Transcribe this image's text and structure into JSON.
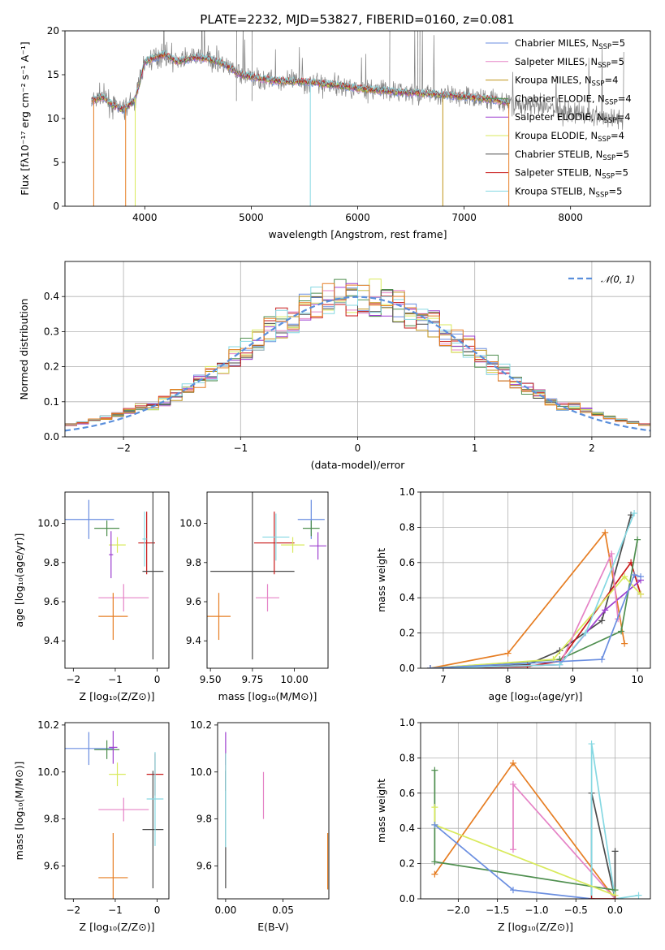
{
  "figure": {
    "title": "PLATE=2232, MJD=53827, FIBERID=0160, z=0.081"
  },
  "colors": {
    "chabrier_miles": "#6a8ee0",
    "salpeter_miles": "#e583c6",
    "kroupa_miles": "#c0941a",
    "chabrier_elodie": "#4f8f4f",
    "salpeter_elodie": "#9d3fcf",
    "kroupa_elodie": "#d9ea5c",
    "chabrier_stelib": "#4a4a4a",
    "salpeter_stelib": "#c81a1a",
    "kroupa_stelib": "#86d8e2",
    "orange": "#e67d22",
    "data_gray": "#808080",
    "normal": "#5a8fdc"
  },
  "chart_data": [
    {
      "id": "spectrum",
      "type": "line",
      "xlabel": "wavelength [Angstrom, rest frame]",
      "ylabel": "Flux [fλ10⁻¹⁷ erg cm⁻² s⁻¹ A⁻¹]",
      "xlim": [
        3250,
        8750
      ],
      "ylim": [
        0,
        20
      ],
      "xticks": [
        4000,
        5000,
        6000,
        7000,
        8000
      ],
      "yticks": [
        0,
        5,
        10,
        15,
        20
      ],
      "legend": "top-right",
      "legend_entries": [
        {
          "label": "Chabrier MILES, N",
          "sub": "SSP",
          "suffix": "=5",
          "color": "#6a8ee0"
        },
        {
          "label": "Salpeter MILES, N",
          "sub": "SSP",
          "suffix": "=5",
          "color": "#e583c6"
        },
        {
          "label": "Kroupa MILES, N",
          "sub": "SSP",
          "suffix": "=4",
          "color": "#c0941a"
        },
        {
          "label": "Chabrier ELODIE, N",
          "sub": "SSP",
          "suffix": "=4",
          "color": "#4f8f4f"
        },
        {
          "label": "Salpeter ELODIE, N",
          "sub": "SSP",
          "suffix": "=4",
          "color": "#9d3fcf"
        },
        {
          "label": "Kroupa ELODIE, N",
          "sub": "SSP",
          "suffix": "=4",
          "color": "#d9ea5c"
        },
        {
          "label": "Chabrier STELIB, N",
          "sub": "SSP",
          "suffix": "=5",
          "color": "#4a4a4a"
        },
        {
          "label": "Salpeter STELIB, N",
          "sub": "SSP",
          "suffix": "=5",
          "color": "#c81a1a"
        },
        {
          "label": "Kroupa STELIB, N",
          "sub": "SSP",
          "suffix": "=5",
          "color": "#86d8e2"
        }
      ],
      "continuum": {
        "x": [
          3500,
          3600,
          3700,
          3800,
          3900,
          3950,
          4000,
          4100,
          4200,
          4300,
          4500,
          4700,
          4900,
          5200,
          5500,
          5800,
          6100,
          6400,
          6700,
          7000,
          7300,
          7500,
          7800,
          8100,
          8400
        ],
        "y": [
          12,
          12.5,
          11.5,
          11,
          12,
          14,
          16.5,
          17,
          17.3,
          16.5,
          17,
          16.5,
          15,
          14.3,
          14.2,
          13.8,
          13.3,
          13,
          12.8,
          12.5,
          12.1,
          11.6,
          11.2,
          10.6,
          10
        ]
      },
      "data_x_range": [
        3500,
        8500
      ],
      "model_x_range": [
        3500,
        7420
      ],
      "model_dips": [
        {
          "x": 3520,
          "color": "#e67d22"
        },
        {
          "x": 3820,
          "color": "#e67d22"
        },
        {
          "x": 3910,
          "color": "#d9ea5c"
        },
        {
          "x": 5555,
          "color": "#86d8e2"
        },
        {
          "x": 6800,
          "color": "#c0941a"
        },
        {
          "x": 7420,
          "color": "#e67d22"
        }
      ]
    },
    {
      "id": "residuals",
      "type": "line",
      "xlabel": "(data-model)/error",
      "ylabel": "Normed distribution",
      "xlim": [
        -2.5,
        2.5
      ],
      "ylim": [
        0,
        0.5
      ],
      "xticks": [
        -2,
        -1,
        0,
        1,
        2
      ],
      "yticks": [
        0.0,
        0.1,
        0.2,
        0.3,
        0.4
      ],
      "legend": "top-right",
      "legend_label": "𝒩(0, 1)",
      "bin_width": 0.1
    },
    {
      "id": "age_vs_Z",
      "type": "scatter",
      "xlabel": "Z [log₁₀(Z/Z⊙)]",
      "ylabel": "age  [log₁₀(age/yr)]",
      "xlim": [
        -2.2,
        0.28
      ],
      "ylim": [
        9.26,
        10.16
      ],
      "xticks": [
        -2,
        -1,
        0
      ],
      "yticks": [
        9.4,
        9.6,
        9.8,
        10.0
      ],
      "points": [
        {
          "x": -1.63,
          "y": 10.02,
          "xerr": 0.6,
          "yerr": 0.1,
          "color": "#6a8ee0"
        },
        {
          "x": -1.2,
          "y": 9.975,
          "xerr": 0.3,
          "yerr": 0.04,
          "color": "#4f8f4f"
        },
        {
          "x": -0.95,
          "y": 9.89,
          "xerr": 0.2,
          "yerr": 0.04,
          "color": "#d9ea5c"
        },
        {
          "x": -0.8,
          "y": 9.62,
          "xerr": 0.6,
          "yerr": 0.07,
          "color": "#e583c6"
        },
        {
          "x": -1.05,
          "y": 9.525,
          "xerr": 0.35,
          "yerr": 0.12,
          "color": "#e67d22"
        },
        {
          "x": -0.25,
          "y": 9.9,
          "xerr": 0.2,
          "yerr": 0.16,
          "color": "#c81a1a"
        },
        {
          "x": -0.1,
          "y": 9.755,
          "xerr": 0.25,
          "yerr": 0.45,
          "color": "#4a4a4a"
        },
        {
          "x": -1.1,
          "y": 9.84,
          "xerr": 0.05,
          "yerr": 0.12,
          "color": "#9d3fcf"
        },
        {
          "x": -0.3,
          "y": 9.92,
          "xerr": 0.05,
          "yerr": 0.14,
          "color": "#86d8e2"
        }
      ]
    },
    {
      "id": "age_vs_mass",
      "type": "scatter",
      "xlabel": "mass [log₁₀(M/M⊙)]",
      "ylabel": "",
      "xlim": [
        9.48,
        10.2
      ],
      "ylim": [
        9.26,
        10.16
      ],
      "xticks": [
        9.5,
        9.75,
        10.0
      ],
      "xticklabels": [
        "9.50",
        "9.75",
        "10.00"
      ],
      "yticks": [
        9.4,
        9.6,
        9.8,
        10.0
      ],
      "points": [
        {
          "x": 9.55,
          "y": 9.525,
          "xerr": 0.07,
          "yerr": 0.12,
          "color": "#e67d22"
        },
        {
          "x": 9.75,
          "y": 9.755,
          "xerr": 0.25,
          "yerr": 0.45,
          "color": "#4a4a4a"
        },
        {
          "x": 9.84,
          "y": 9.62,
          "xerr": 0.07,
          "yerr": 0.07,
          "color": "#e583c6"
        },
        {
          "x": 9.88,
          "y": 9.9,
          "xerr": 0.12,
          "yerr": 0.16,
          "color": "#c81a1a"
        },
        {
          "x": 9.89,
          "y": 9.93,
          "xerr": 0.08,
          "yerr": 0.12,
          "color": "#86d8e2"
        },
        {
          "x": 9.99,
          "y": 9.89,
          "xerr": 0.07,
          "yerr": 0.04,
          "color": "#d9ea5c"
        },
        {
          "x": 10.1,
          "y": 10.02,
          "xerr": 0.08,
          "yerr": 0.1,
          "color": "#6a8ee0"
        },
        {
          "x": 10.1,
          "y": 9.975,
          "xerr": 0.05,
          "yerr": 0.04,
          "color": "#4f8f4f"
        },
        {
          "x": 10.14,
          "y": 9.885,
          "xerr": 0.05,
          "yerr": 0.07,
          "color": "#9d3fcf"
        }
      ]
    },
    {
      "id": "weight_vs_age",
      "type": "line",
      "xlabel": "age  [log₁₀(age/yr)]",
      "ylabel": "mass weight",
      "xlim": [
        6.65,
        10.2
      ],
      "ylim": [
        0,
        1
      ],
      "xticks": [
        7,
        8,
        9,
        10
      ],
      "yticks": [
        0.0,
        0.2,
        0.4,
        0.6,
        0.8,
        1.0
      ],
      "series": [
        {
          "color": "#e67d22",
          "x": [
            6.8,
            8.0,
            9.5,
            9.8
          ],
          "y": [
            0,
            0.085,
            0.77,
            0.14
          ]
        },
        {
          "color": "#4a4a4a",
          "x": [
            6.8,
            8.3,
            8.8,
            9.45,
            9.9
          ],
          "y": [
            0,
            0.02,
            0.1,
            0.27,
            0.87
          ]
        },
        {
          "color": "#c81a1a",
          "x": [
            6.8,
            8.3,
            8.8,
            9.9,
            10.05
          ],
          "y": [
            0,
            0.01,
            0.04,
            0.6,
            0.42
          ]
        },
        {
          "color": "#4f8f4f",
          "x": [
            6.8,
            8.8,
            9.75,
            10.0
          ],
          "y": [
            0,
            0.05,
            0.21,
            0.73
          ]
        },
        {
          "color": "#9d3fcf",
          "x": [
            6.8,
            8.8,
            9.5,
            10.05
          ],
          "y": [
            0,
            0.02,
            0.33,
            0.5
          ]
        },
        {
          "color": "#d9ea5c",
          "x": [
            6.8,
            8.7,
            9.8,
            10.05
          ],
          "y": [
            0,
            0.05,
            0.52,
            0.42
          ]
        },
        {
          "color": "#e583c6",
          "x": [
            6.8,
            8.8,
            9.6,
            9.7
          ],
          "y": [
            0,
            0.02,
            0.65,
            0.28
          ]
        },
        {
          "color": "#86d8e2",
          "x": [
            6.8,
            8.8,
            9.2,
            9.95
          ],
          "y": [
            0,
            0.02,
            0.2,
            0.88
          ]
        },
        {
          "color": "#6a8ee0",
          "x": [
            6.8,
            9.45,
            9.95,
            10.05
          ],
          "y": [
            0,
            0.05,
            0.53,
            0.52
          ]
        }
      ]
    },
    {
      "id": "mass_vs_Z",
      "type": "scatter",
      "xlabel": "Z [log₁₀(Z/Z⊙)]",
      "ylabel": "mass [log₁₀(M/M⊙)]",
      "xlim": [
        -2.2,
        0.28
      ],
      "ylim": [
        9.46,
        10.21
      ],
      "xticks": [
        -2,
        -1,
        0
      ],
      "yticks": [
        9.6,
        9.8,
        10.0,
        10.2
      ],
      "points": [
        {
          "x": -1.63,
          "y": 10.1,
          "xerr": 0.6,
          "yerr": 0.07,
          "color": "#6a8ee0"
        },
        {
          "x": -1.2,
          "y": 10.095,
          "xerr": 0.3,
          "yerr": 0.04,
          "color": "#4f8f4f"
        },
        {
          "x": -1.05,
          "y": 10.105,
          "xerr": 0.1,
          "yerr": 0.07,
          "color": "#9d3fcf"
        },
        {
          "x": -0.95,
          "y": 9.99,
          "xerr": 0.2,
          "yerr": 0.05,
          "color": "#d9ea5c"
        },
        {
          "x": -0.8,
          "y": 9.84,
          "xerr": 0.6,
          "yerr": 0.05,
          "color": "#e583c6"
        },
        {
          "x": -1.05,
          "y": 9.55,
          "xerr": 0.35,
          "yerr": 0.19,
          "color": "#e67d22"
        },
        {
          "x": -0.05,
          "y": 9.99,
          "xerr": 0.2,
          "yerr": 0.09,
          "color": "#c81a1a"
        },
        {
          "x": -0.1,
          "y": 9.755,
          "xerr": 0.25,
          "yerr": 0.25,
          "color": "#4a4a4a"
        },
        {
          "x": -0.05,
          "y": 9.885,
          "xerr": 0.2,
          "yerr": 0.2,
          "color": "#86d8e2"
        }
      ]
    },
    {
      "id": "mass_vs_ebv",
      "type": "scatter",
      "xlabel": "E(B-V)",
      "ylabel": "",
      "xlim": [
        -0.007,
        0.09
      ],
      "ylim": [
        9.46,
        10.21
      ],
      "xticks": [
        0.0,
        0.05
      ],
      "xticklabels": [
        "0.00",
        "0.05"
      ],
      "yticks": [
        9.6,
        9.8,
        10.0,
        10.2
      ],
      "points": [
        {
          "x": 0.0,
          "y": 10.1,
          "yerr": 0.07,
          "color": "#9d3fcf"
        },
        {
          "x": 0.0,
          "y": 10.0,
          "yerr": 0.08,
          "color": "#c81a1a"
        },
        {
          "x": 0.0,
          "y": 9.755,
          "yerr": 0.25,
          "color": "#4a4a4a"
        },
        {
          "x": 0.0,
          "y": 9.88,
          "yerr": 0.2,
          "color": "#86d8e2"
        },
        {
          "x": 0.033,
          "y": 9.9,
          "yerr": 0.1,
          "color": "#e583c6"
        },
        {
          "x": 0.089,
          "y": 9.62,
          "yerr": 0.12,
          "color": "#e67d22"
        }
      ]
    },
    {
      "id": "weight_vs_Z",
      "type": "line",
      "xlabel": "Z [log₁₀(Z/Z⊙)]",
      "ylabel": "mass weight",
      "xlim": [
        -2.48,
        0.45
      ],
      "ylim": [
        0,
        1
      ],
      "xticks": [
        -2.0,
        -1.5,
        -1.0,
        -0.5,
        0.0
      ],
      "xticklabels": [
        "−2.0",
        "−1.5",
        "−1.0",
        "−0.5",
        "0.0"
      ],
      "yticks": [
        0.0,
        0.2,
        0.4,
        0.6,
        0.8,
        1.0
      ],
      "series": [
        {
          "color": "#e67d22",
          "x": [
            -2.3,
            -1.3,
            0.0
          ],
          "y": [
            0.14,
            0.77,
            0.0
          ]
        },
        {
          "color": "#e583c6",
          "x": [
            -1.3,
            -1.3,
            0.0
          ],
          "y": [
            0.28,
            0.65,
            0.0
          ]
        },
        {
          "color": "#4a4a4a",
          "x": [
            -0.3,
            -0.3,
            0.0,
            0.0
          ],
          "y": [
            0.0,
            0.6,
            0.0,
            0.27
          ]
        },
        {
          "color": "#86d8e2",
          "x": [
            -0.3,
            -0.3,
            0.0,
            0.3
          ],
          "y": [
            0.0,
            0.88,
            0.0,
            0.02
          ]
        },
        {
          "color": "#4f8f4f",
          "x": [
            -2.3,
            -2.3,
            0.0
          ],
          "y": [
            0.73,
            0.21,
            0.05
          ]
        },
        {
          "color": "#d9ea5c",
          "x": [
            -2.3,
            -2.3,
            0.0
          ],
          "y": [
            0.52,
            0.42,
            0.02
          ]
        },
        {
          "color": "#6a8ee0",
          "x": [
            -2.3,
            -1.3,
            -0.3
          ],
          "y": [
            0.42,
            0.05,
            0.0
          ]
        },
        {
          "color": "#c81a1a",
          "x": [
            -0.3,
            0.0
          ],
          "y": [
            0.0,
            0.0
          ]
        }
      ]
    }
  ]
}
